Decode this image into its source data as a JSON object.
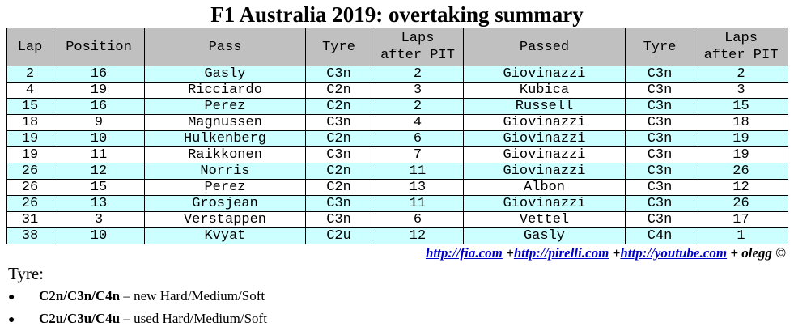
{
  "title": "F1 Australia 2019: overtaking summary",
  "table": {
    "headers": {
      "lap": "Lap",
      "position": "Position",
      "pass": "Pass",
      "tyre": "Tyre",
      "laps_after_pit_1": "Laps",
      "laps_after_pit_2": "after PIT",
      "passed": "Passed",
      "tyre2": "Tyre",
      "laps_after_pit2_1": "Laps",
      "laps_after_pit2_2": "after PIT"
    },
    "rows": [
      {
        "lap": "2",
        "position": "16",
        "pass": "Gasly",
        "tyre": "C3n",
        "laps": "2",
        "passed": "Giovinazzi",
        "tyre2": "C3n",
        "laps2": "2"
      },
      {
        "lap": "4",
        "position": "19",
        "pass": "Ricciardo",
        "tyre": "C2n",
        "laps": "3",
        "passed": "Kubica",
        "tyre2": "C3n",
        "laps2": "3"
      },
      {
        "lap": "15",
        "position": "16",
        "pass": "Perez",
        "tyre": "C2n",
        "laps": "2",
        "passed": "Russell",
        "tyre2": "C3n",
        "laps2": "15"
      },
      {
        "lap": "18",
        "position": "9",
        "pass": "Magnussen",
        "tyre": "C3n",
        "laps": "4",
        "passed": "Giovinazzi",
        "tyre2": "C3n",
        "laps2": "18"
      },
      {
        "lap": "19",
        "position": "10",
        "pass": "Hulkenberg",
        "tyre": "C2n",
        "laps": "6",
        "passed": "Giovinazzi",
        "tyre2": "C3n",
        "laps2": "19"
      },
      {
        "lap": "19",
        "position": "11",
        "pass": "Raikkonen",
        "tyre": "C3n",
        "laps": "7",
        "passed": "Giovinazzi",
        "tyre2": "C3n",
        "laps2": "19"
      },
      {
        "lap": "26",
        "position": "12",
        "pass": "Norris",
        "tyre": "C2n",
        "laps": "11",
        "passed": "Giovinazzi",
        "tyre2": "C3n",
        "laps2": "26"
      },
      {
        "lap": "26",
        "position": "15",
        "pass": "Perez",
        "tyre": "C2n",
        "laps": "13",
        "passed": "Albon",
        "tyre2": "C3n",
        "laps2": "12"
      },
      {
        "lap": "26",
        "position": "13",
        "pass": "Grosjean",
        "tyre": "C3n",
        "laps": "11",
        "passed": "Giovinazzi",
        "tyre2": "C3n",
        "laps2": "26"
      },
      {
        "lap": "31",
        "position": "3",
        "pass": "Verstappen",
        "tyre": "C3n",
        "laps": "6",
        "passed": "Vettel",
        "tyre2": "C3n",
        "laps2": "17"
      },
      {
        "lap": "38",
        "position": "10",
        "pass": "Kvyat",
        "tyre": "C2u",
        "laps": "12",
        "passed": "Gasly",
        "tyre2": "C4n",
        "laps2": "1"
      }
    ]
  },
  "credits": {
    "link1": "http://fia.com",
    "sep1": "+",
    "link2": "http://pirelli.com",
    "sep2": "+",
    "link3": "http://youtube.com",
    "suffix": "+ olegg ©"
  },
  "legend": {
    "heading": "Tyre:",
    "items": [
      {
        "bullet": "●",
        "code": "C2n/C3n/C4n",
        "desc": "– new Hard/Medium/Soft"
      },
      {
        "bullet": "●",
        "code": "C2u/C3u/C4u",
        "desc": "– used Hard/Medium/Soft"
      }
    ]
  }
}
